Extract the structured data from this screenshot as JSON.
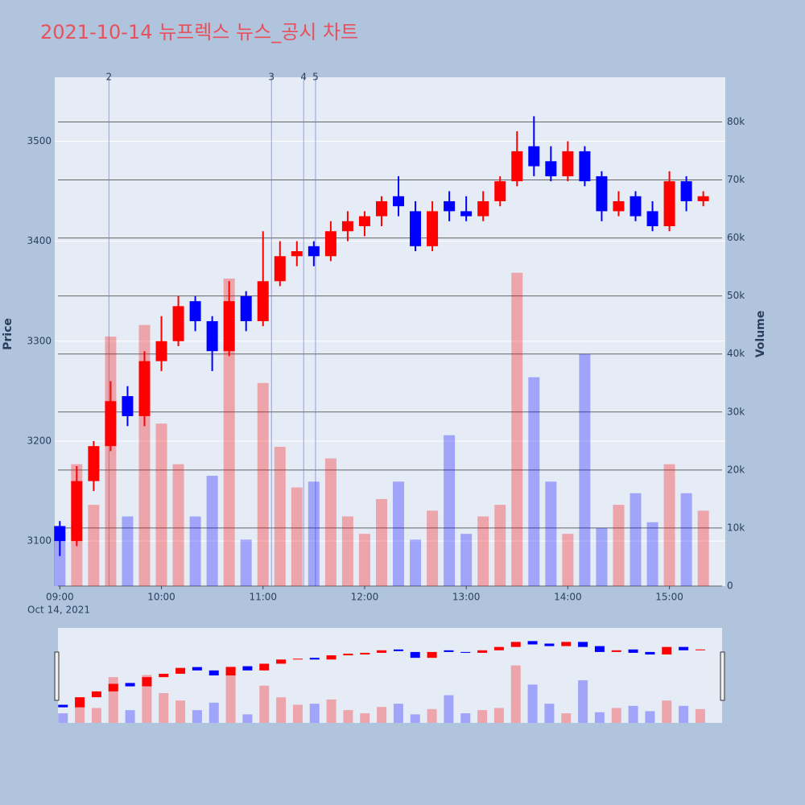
{
  "chart_data": {
    "type": "candlestick",
    "title": "2021-10-14 뉴프렉스 뉴스_공시 차트",
    "y_label": "Price",
    "y2_label": "Volume",
    "x_date": "Oct 14, 2021",
    "x": [
      "09:00",
      "09:10",
      "09:20",
      "09:30",
      "09:40",
      "09:50",
      "10:00",
      "10:10",
      "10:20",
      "10:30",
      "10:40",
      "10:50",
      "11:00",
      "11:10",
      "11:20",
      "11:30",
      "11:40",
      "11:50",
      "12:00",
      "12:10",
      "12:20",
      "12:30",
      "12:40",
      "12:50",
      "13:00",
      "13:10",
      "13:20",
      "13:30",
      "13:40",
      "13:50",
      "14:00",
      "14:10",
      "14:20",
      "14:30",
      "14:40",
      "14:50",
      "15:00",
      "15:10",
      "15:20"
    ],
    "open": [
      3115,
      3100,
      3160,
      3195,
      3245,
      3225,
      3280,
      3300,
      3340,
      3320,
      3290,
      3345,
      3320,
      3360,
      3385,
      3395,
      3385,
      3410,
      3415,
      3425,
      3445,
      3430,
      3395,
      3440,
      3430,
      3425,
      3440,
      3460,
      3495,
      3480,
      3465,
      3490,
      3465,
      3430,
      3445,
      3430,
      3415,
      3460,
      3440
    ],
    "high": [
      3120,
      3175,
      3200,
      3260,
      3255,
      3290,
      3325,
      3345,
      3345,
      3325,
      3360,
      3350,
      3410,
      3400,
      3400,
      3400,
      3420,
      3430,
      3430,
      3445,
      3465,
      3440,
      3440,
      3450,
      3445,
      3450,
      3465,
      3510,
      3525,
      3495,
      3500,
      3495,
      3470,
      3450,
      3450,
      3440,
      3470,
      3465,
      3450
    ],
    "low": [
      3085,
      3095,
      3150,
      3190,
      3215,
      3215,
      3270,
      3295,
      3310,
      3270,
      3285,
      3310,
      3315,
      3355,
      3375,
      3375,
      3380,
      3400,
      3405,
      3415,
      3425,
      3390,
      3390,
      3420,
      3420,
      3420,
      3435,
      3455,
      3465,
      3460,
      3460,
      3455,
      3420,
      3425,
      3420,
      3410,
      3410,
      3430,
      3435
    ],
    "close": [
      3100,
      3160,
      3195,
      3240,
      3225,
      3280,
      3300,
      3335,
      3320,
      3290,
      3340,
      3320,
      3360,
      3385,
      3390,
      3385,
      3410,
      3420,
      3425,
      3440,
      3435,
      3395,
      3430,
      3430,
      3425,
      3440,
      3460,
      3490,
      3475,
      3465,
      3490,
      3460,
      3430,
      3440,
      3425,
      3415,
      3460,
      3440,
      3445
    ],
    "volume": [
      9000,
      21000,
      14000,
      43000,
      12000,
      45000,
      28000,
      21000,
      12000,
      19000,
      53000,
      8000,
      35000,
      24000,
      17000,
      18000,
      22000,
      12000,
      9000,
      15000,
      18000,
      8000,
      13000,
      26000,
      9000,
      12000,
      14000,
      54000,
      36000,
      18000,
      9000,
      40000,
      10000,
      14000,
      16000,
      11000,
      21000,
      16000,
      13000
    ],
    "increasing_color": "#ff0000",
    "decreasing_color": "#0000ff",
    "xlim": [
      "08:57",
      "15:33"
    ],
    "xticks": [
      "09:00",
      "10:00",
      "11:00",
      "12:00",
      "13:00",
      "14:00",
      "15:00"
    ],
    "ylim": [
      3055,
      3564
    ],
    "yticks": [
      3100,
      3200,
      3300,
      3400,
      3500
    ],
    "y2lim": [
      0,
      87700
    ],
    "y2ticks": [
      0,
      {
        "value": 10000,
        "label": "10k"
      },
      {
        "value": 20000,
        "label": "20k"
      },
      {
        "value": 30000,
        "label": "30k"
      },
      {
        "value": 40000,
        "label": "40k"
      },
      {
        "value": 50000,
        "label": "50k"
      },
      {
        "value": 60000,
        "label": "60k"
      },
      {
        "value": 70000,
        "label": "70k"
      },
      {
        "value": 80000,
        "label": "80k"
      }
    ],
    "annotations": [
      {
        "x": "09:29",
        "text": "2"
      },
      {
        "x": "11:05",
        "text": "3"
      },
      {
        "x": "11:24",
        "text": "4"
      },
      {
        "x": "11:31",
        "text": "5"
      }
    ],
    "grid": true,
    "range_slider": true
  }
}
